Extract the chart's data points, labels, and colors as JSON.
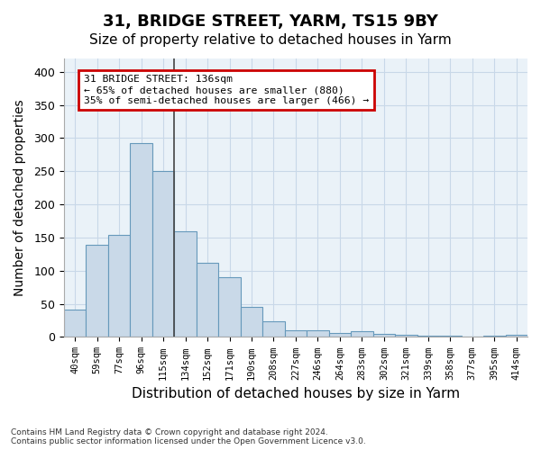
{
  "title1": "31, BRIDGE STREET, YARM, TS15 9BY",
  "title2": "Size of property relative to detached houses in Yarm",
  "xlabel": "Distribution of detached houses by size in Yarm",
  "ylabel": "Number of detached properties",
  "footnote": "Contains HM Land Registry data © Crown copyright and database right 2024.\nContains public sector information licensed under the Open Government Licence v3.0.",
  "bar_labels": [
    "40sqm",
    "59sqm",
    "77sqm",
    "96sqm",
    "115sqm",
    "134sqm",
    "152sqm",
    "171sqm",
    "190sqm",
    "208sqm",
    "227sqm",
    "246sqm",
    "264sqm",
    "283sqm",
    "302sqm",
    "321sqm",
    "339sqm",
    "358sqm",
    "377sqm",
    "395sqm",
    "414sqm"
  ],
  "bar_values": [
    41,
    139,
    154,
    292,
    251,
    159,
    112,
    90,
    46,
    24,
    10,
    10,
    6,
    9,
    4,
    3,
    2,
    2,
    1,
    2,
    3
  ],
  "bar_color": "#c9d9e8",
  "bar_edge_color": "#6699bb",
  "property_size": "136sqm",
  "annotation_text": "31 BRIDGE STREET: 136sqm\n← 65% of detached houses are smaller (880)\n35% of semi-detached houses are larger (466) →",
  "annotation_box_color": "#ffffff",
  "annotation_box_edge": "#cc0000",
  "ylim": [
    0,
    420
  ],
  "yticks": [
    0,
    50,
    100,
    150,
    200,
    250,
    300,
    350,
    400
  ],
  "grid_color": "#c8d8e8",
  "background_color": "#eaf2f8",
  "title1_fontsize": 13,
  "title2_fontsize": 11,
  "xlabel_fontsize": 11,
  "ylabel_fontsize": 10,
  "property_line_x": 4.5
}
